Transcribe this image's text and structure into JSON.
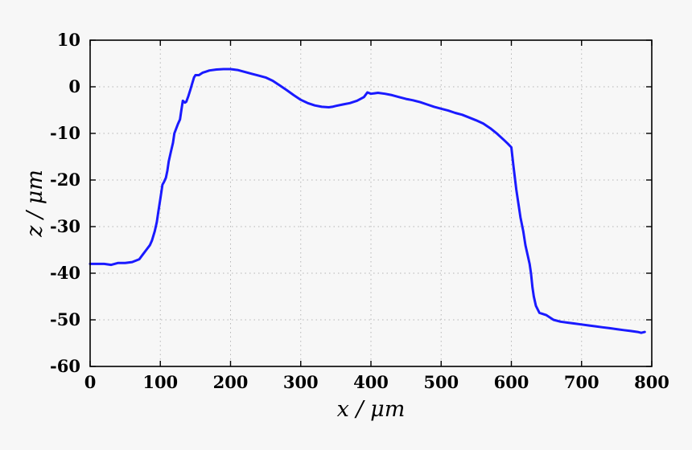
{
  "chart_data": {
    "type": "line",
    "xlabel": "x / μm",
    "ylabel": "z / μm",
    "xlim": [
      0,
      800
    ],
    "ylim": [
      -60,
      10
    ],
    "xticks": [
      0,
      100,
      200,
      300,
      400,
      500,
      600,
      700,
      800
    ],
    "yticks": [
      -60,
      -50,
      -40,
      -30,
      -20,
      -10,
      0,
      10
    ],
    "grid": true,
    "series": [
      {
        "color": "#1a1aff",
        "x": [
          0,
          10,
          20,
          30,
          40,
          50,
          60,
          70,
          75,
          80,
          85,
          88,
          92,
          95,
          97,
          100,
          103,
          105,
          108,
          110,
          112,
          115,
          118,
          120,
          125,
          128,
          130,
          132,
          135,
          137,
          140,
          143,
          145,
          148,
          150,
          155,
          160,
          170,
          180,
          190,
          200,
          210,
          220,
          230,
          240,
          250,
          260,
          270,
          280,
          290,
          300,
          310,
          320,
          330,
          340,
          345,
          350,
          360,
          370,
          380,
          390,
          395,
          400,
          405,
          410,
          420,
          430,
          440,
          450,
          460,
          470,
          480,
          490,
          500,
          510,
          520,
          530,
          540,
          550,
          560,
          570,
          580,
          590,
          595,
          600,
          603,
          607,
          610,
          613,
          617,
          620,
          623,
          626,
          628,
          630,
          632,
          635,
          640,
          650,
          660,
          670,
          680,
          690,
          700,
          710,
          720,
          730,
          740,
          750,
          760,
          770,
          775,
          780,
          785,
          790
        ],
        "y": [
          -38,
          -38,
          -38,
          -38.2,
          -37.8,
          -37.8,
          -37.6,
          -37,
          -36,
          -35,
          -34,
          -33,
          -31,
          -29,
          -27,
          -24,
          -21,
          -20.5,
          -19.5,
          -18,
          -16,
          -14,
          -12,
          -10,
          -8,
          -7,
          -5,
          -3,
          -3.4,
          -3.2,
          -2,
          -0.5,
          0.5,
          2,
          2.5,
          2.5,
          3,
          3.5,
          3.7,
          3.8,
          3.8,
          3.6,
          3.2,
          2.8,
          2.4,
          2,
          1.3,
          0.3,
          -0.7,
          -1.8,
          -2.8,
          -3.5,
          -4,
          -4.3,
          -4.4,
          -4.3,
          -4.1,
          -3.8,
          -3.5,
          -3,
          -2.2,
          -1.2,
          -1.5,
          -1.4,
          -1.3,
          -1.5,
          -1.8,
          -2.2,
          -2.6,
          -2.9,
          -3.3,
          -3.8,
          -4.3,
          -4.7,
          -5.1,
          -5.6,
          -6,
          -6.6,
          -7.2,
          -7.9,
          -8.9,
          -10.1,
          -11.5,
          -12.2,
          -13,
          -17,
          -22,
          -25,
          -28,
          -31,
          -34,
          -36,
          -38,
          -40,
          -43,
          -45,
          -47,
          -48.5,
          -49,
          -50,
          -50.4,
          -50.6,
          -50.8,
          -51,
          -51.2,
          -51.4,
          -51.6,
          -51.8,
          -52,
          -52.2,
          -52.4,
          -52.5,
          -52.6,
          -52.8,
          -52.6
        ]
      }
    ]
  }
}
